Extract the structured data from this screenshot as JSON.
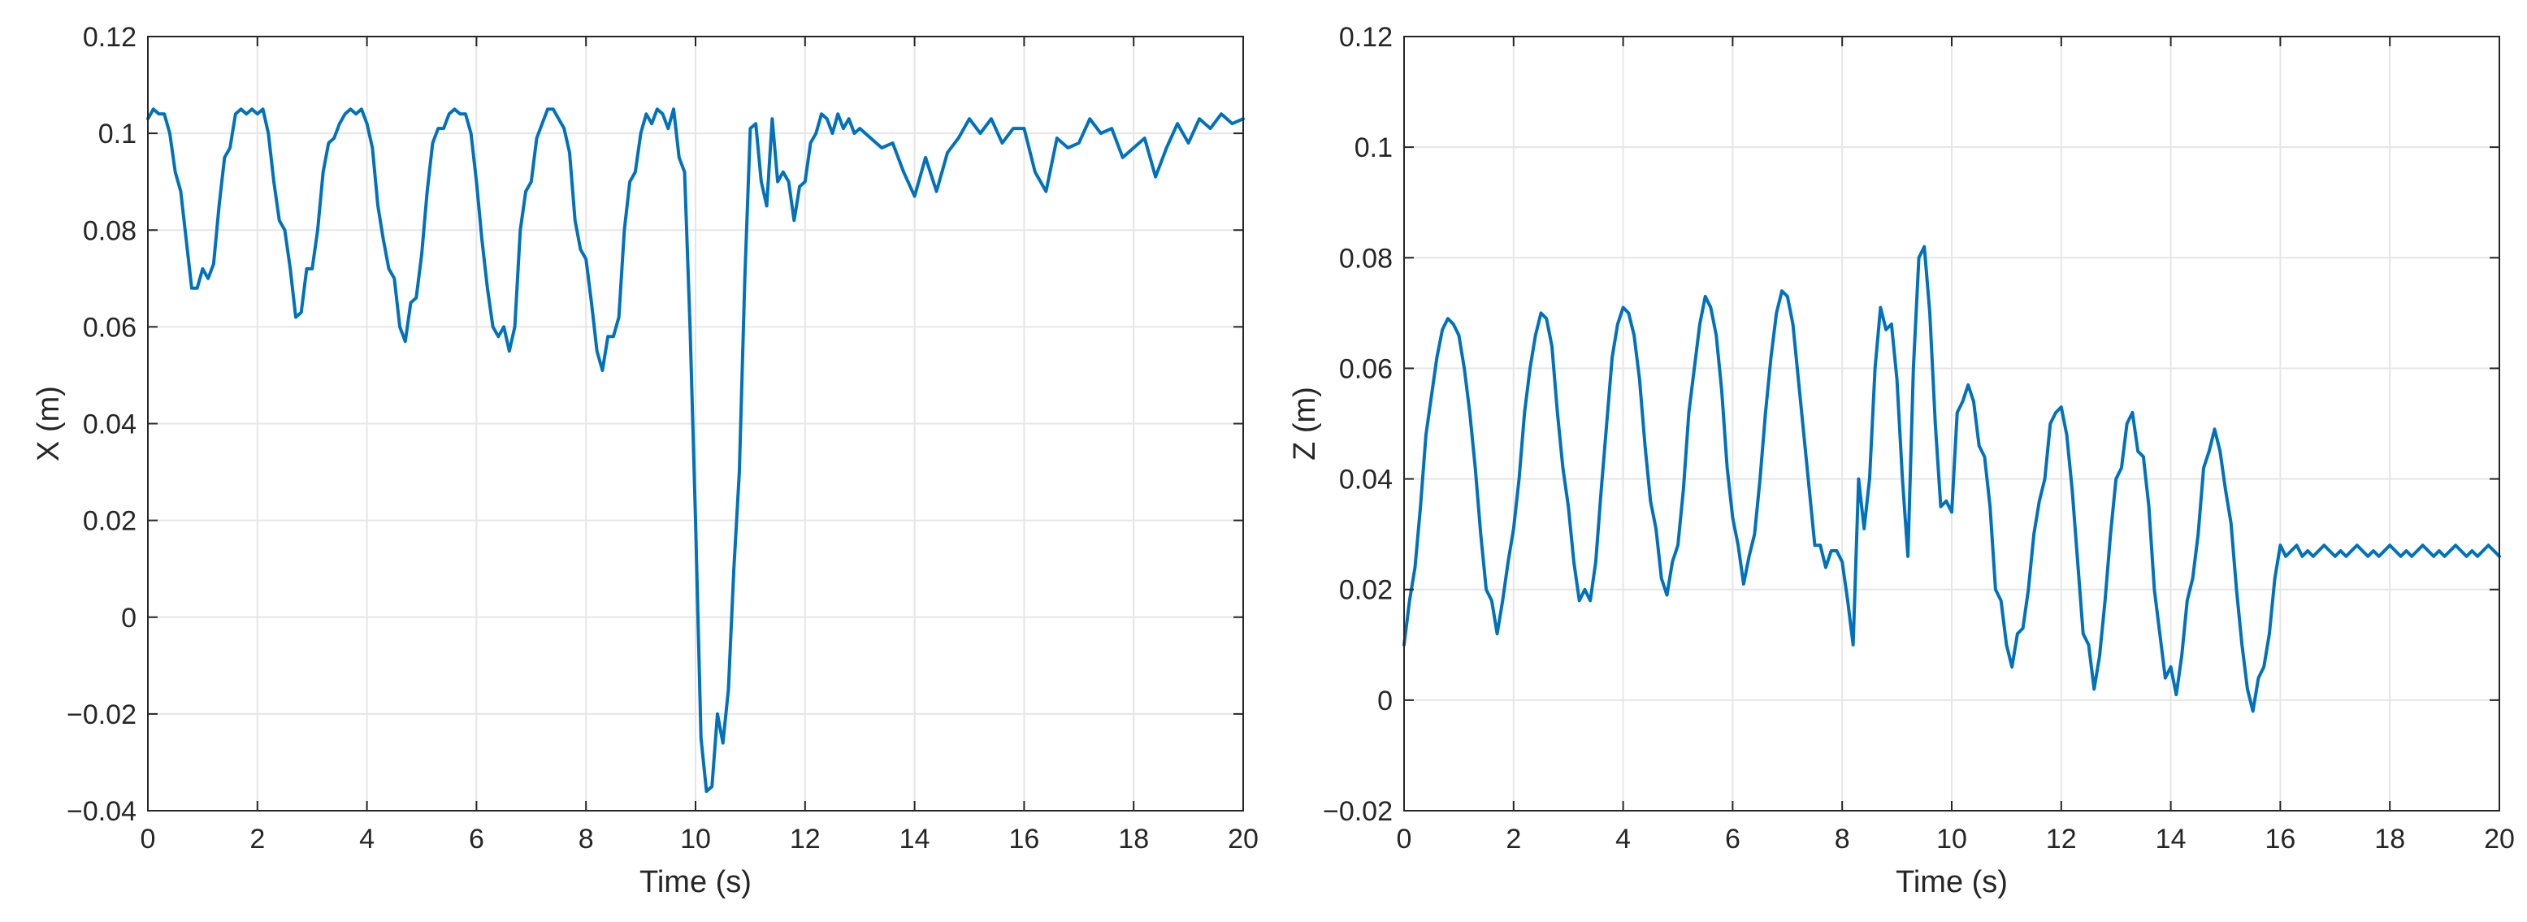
{
  "colors": {
    "series": "#0072BD",
    "axis": "#262626",
    "grid": "#e6e6e6"
  },
  "chart_data": [
    {
      "type": "line",
      "xlabel": "Time (s)",
      "ylabel": "X (m)",
      "xlim": [
        0,
        20
      ],
      "ylim": [
        -0.04,
        0.12
      ],
      "xticks": [
        0,
        2,
        4,
        6,
        8,
        10,
        12,
        14,
        16,
        18,
        20
      ],
      "yticks": [
        -0.04,
        -0.02,
        0,
        0.02,
        0.04,
        0.06,
        0.08,
        0.1,
        0.12
      ],
      "xtick_labels": [
        "0",
        "2",
        "4",
        "6",
        "8",
        "10",
        "12",
        "14",
        "16",
        "18",
        "20"
      ],
      "ytick_labels": [
        "-0.04",
        "-0.02",
        "0",
        "0.02",
        "0.04",
        "0.06",
        "0.08",
        "0.1",
        "0.12"
      ],
      "grid": true,
      "series": [
        {
          "x": [
            0,
            0.1,
            0.2,
            0.3,
            0.4,
            0.5,
            0.6,
            0.7,
            0.8,
            0.9,
            1.0,
            1.1,
            1.2,
            1.3,
            1.4,
            1.5,
            1.6,
            1.7,
            1.8,
            1.9,
            2.0,
            2.1,
            2.2,
            2.3,
            2.4,
            2.5,
            2.6,
            2.7,
            2.8,
            2.9,
            3.0,
            3.1,
            3.2,
            3.3,
            3.4,
            3.5,
            3.6,
            3.7,
            3.8,
            3.9,
            4.0,
            4.1,
            4.2,
            4.3,
            4.4,
            4.5,
            4.6,
            4.7,
            4.8,
            4.9,
            5.0,
            5.1,
            5.2,
            5.3,
            5.4,
            5.5,
            5.6,
            5.7,
            5.8,
            5.9,
            6.0,
            6.1,
            6.2,
            6.3,
            6.4,
            6.5,
            6.6,
            6.7,
            6.8,
            6.9,
            7.0,
            7.1,
            7.2,
            7.3,
            7.4,
            7.5,
            7.6,
            7.7,
            7.8,
            7.9,
            8.0,
            8.1,
            8.2,
            8.3,
            8.4,
            8.5,
            8.6,
            8.7,
            8.8,
            8.9,
            9.0,
            9.1,
            9.2,
            9.3,
            9.4,
            9.5,
            9.6,
            9.7,
            9.8,
            9.9,
            10.0,
            10.1,
            10.2,
            10.3,
            10.4,
            10.5,
            10.6,
            10.7,
            10.8,
            10.9,
            11.0,
            11.1,
            11.2,
            11.3,
            11.4,
            11.5,
            11.6,
            11.7,
            11.8,
            11.9,
            12.0,
            12.1,
            12.2,
            12.3,
            12.4,
            12.5,
            12.6,
            12.7,
            12.8,
            12.9,
            13.0,
            13.2,
            13.4,
            13.6,
            13.8,
            14.0,
            14.2,
            14.4,
            14.6,
            14.8,
            15.0,
            15.2,
            15.4,
            15.6,
            15.8,
            16.0,
            16.2,
            16.4,
            16.6,
            16.8,
            17.0,
            17.2,
            17.4,
            17.6,
            17.8,
            18.0,
            18.2,
            18.4,
            18.6,
            18.8,
            19.0,
            19.2,
            19.4,
            19.6,
            19.8,
            20.0
          ],
          "y": [
            0.103,
            0.105,
            0.104,
            0.104,
            0.1,
            0.092,
            0.088,
            0.078,
            0.068,
            0.068,
            0.072,
            0.07,
            0.073,
            0.085,
            0.095,
            0.097,
            0.104,
            0.105,
            0.104,
            0.105,
            0.104,
            0.105,
            0.1,
            0.09,
            0.082,
            0.08,
            0.072,
            0.062,
            0.063,
            0.072,
            0.072,
            0.08,
            0.092,
            0.098,
            0.099,
            0.102,
            0.104,
            0.105,
            0.104,
            0.105,
            0.102,
            0.097,
            0.085,
            0.078,
            0.072,
            0.07,
            0.06,
            0.057,
            0.065,
            0.066,
            0.075,
            0.088,
            0.098,
            0.101,
            0.101,
            0.104,
            0.105,
            0.104,
            0.104,
            0.1,
            0.09,
            0.078,
            0.068,
            0.06,
            0.058,
            0.06,
            0.055,
            0.06,
            0.08,
            0.088,
            0.09,
            0.099,
            0.102,
            0.105,
            0.105,
            0.103,
            0.101,
            0.096,
            0.082,
            0.076,
            0.074,
            0.065,
            0.055,
            0.051,
            0.058,
            0.058,
            0.062,
            0.08,
            0.09,
            0.092,
            0.1,
            0.104,
            0.102,
            0.105,
            0.104,
            0.101,
            0.105,
            0.095,
            0.092,
            0.06,
            0.02,
            -0.025,
            -0.036,
            -0.035,
            -0.02,
            -0.026,
            -0.015,
            0.01,
            0.03,
            0.07,
            0.101,
            0.102,
            0.09,
            0.085,
            0.103,
            0.09,
            0.092,
            0.09,
            0.082,
            0.089,
            0.09,
            0.098,
            0.1,
            0.104,
            0.103,
            0.1,
            0.104,
            0.101,
            0.103,
            0.1,
            0.101,
            0.099,
            0.097,
            0.098,
            0.092,
            0.087,
            0.095,
            0.088,
            0.096,
            0.099,
            0.103,
            0.1,
            0.103,
            0.098,
            0.101,
            0.101,
            0.092,
            0.088,
            0.099,
            0.097,
            0.098,
            0.103,
            0.1,
            0.101,
            0.095,
            0.097,
            0.099,
            0.091,
            0.097,
            0.102,
            0.098,
            0.103,
            0.101,
            0.104,
            0.102,
            0.103
          ]
        }
      ]
    },
    {
      "type": "line",
      "xlabel": "Time (s)",
      "ylabel": "Z (m)",
      "xlim": [
        0,
        20
      ],
      "ylim": [
        -0.02,
        0.12
      ],
      "xticks": [
        0,
        2,
        4,
        6,
        8,
        10,
        12,
        14,
        16,
        18,
        20
      ],
      "yticks": [
        -0.02,
        0,
        0.02,
        0.04,
        0.06,
        0.08,
        0.1,
        0.12
      ],
      "xtick_labels": [
        "0",
        "2",
        "4",
        "6",
        "8",
        "10",
        "12",
        "14",
        "16",
        "18",
        "20"
      ],
      "ytick_labels": [
        "-0.02",
        "0",
        "0.02",
        "0.04",
        "0.06",
        "0.08",
        "0.1",
        "0.12"
      ],
      "grid": true,
      "series": [
        {
          "x": [
            0,
            0.1,
            0.2,
            0.3,
            0.4,
            0.5,
            0.6,
            0.7,
            0.8,
            0.9,
            1.0,
            1.1,
            1.2,
            1.3,
            1.4,
            1.5,
            1.6,
            1.7,
            1.8,
            1.9,
            2.0,
            2.1,
            2.2,
            2.3,
            2.4,
            2.5,
            2.6,
            2.7,
            2.8,
            2.9,
            3.0,
            3.1,
            3.2,
            3.3,
            3.4,
            3.5,
            3.6,
            3.7,
            3.8,
            3.9,
            4.0,
            4.1,
            4.2,
            4.3,
            4.4,
            4.5,
            4.6,
            4.7,
            4.8,
            4.9,
            5.0,
            5.1,
            5.2,
            5.3,
            5.4,
            5.5,
            5.6,
            5.7,
            5.8,
            5.9,
            6.0,
            6.1,
            6.2,
            6.3,
            6.4,
            6.5,
            6.6,
            6.7,
            6.8,
            6.9,
            7.0,
            7.1,
            7.2,
            7.3,
            7.4,
            7.5,
            7.6,
            7.7,
            7.8,
            7.9,
            8.0,
            8.1,
            8.2,
            8.3,
            8.4,
            8.5,
            8.6,
            8.7,
            8.8,
            8.9,
            9.0,
            9.1,
            9.2,
            9.3,
            9.4,
            9.5,
            9.6,
            9.7,
            9.8,
            9.9,
            10.0,
            10.1,
            10.2,
            10.3,
            10.4,
            10.5,
            10.6,
            10.7,
            10.8,
            10.9,
            11.0,
            11.1,
            11.2,
            11.3,
            11.4,
            11.5,
            11.6,
            11.7,
            11.8,
            11.9,
            12.0,
            12.1,
            12.2,
            12.3,
            12.4,
            12.5,
            12.6,
            12.7,
            12.8,
            12.9,
            13.0,
            13.1,
            13.2,
            13.3,
            13.4,
            13.5,
            13.6,
            13.7,
            13.8,
            13.9,
            14.0,
            14.1,
            14.2,
            14.3,
            14.4,
            14.5,
            14.6,
            14.7,
            14.8,
            14.9,
            15.0,
            15.1,
            15.2,
            15.3,
            15.4,
            15.5,
            15.6,
            15.7,
            15.8,
            15.9,
            16.0,
            16.1,
            16.2,
            16.3,
            16.4,
            16.5,
            16.6,
            16.7,
            16.8,
            16.9,
            17.0,
            17.1,
            17.2,
            17.3,
            17.4,
            17.5,
            17.6,
            17.7,
            17.8,
            17.9,
            18.0,
            18.1,
            18.2,
            18.3,
            18.4,
            18.5,
            18.6,
            18.7,
            18.8,
            18.9,
            19.0,
            19.1,
            19.2,
            19.3,
            19.4,
            19.5,
            19.6,
            19.7,
            19.8,
            19.9,
            20.0
          ],
          "y": [
            0.01,
            0.018,
            0.024,
            0.035,
            0.048,
            0.055,
            0.062,
            0.067,
            0.069,
            0.068,
            0.066,
            0.06,
            0.052,
            0.042,
            0.03,
            0.02,
            0.018,
            0.012,
            0.018,
            0.025,
            0.031,
            0.04,
            0.052,
            0.06,
            0.066,
            0.07,
            0.069,
            0.064,
            0.052,
            0.042,
            0.035,
            0.025,
            0.018,
            0.02,
            0.018,
            0.025,
            0.038,
            0.05,
            0.062,
            0.068,
            0.071,
            0.07,
            0.066,
            0.058,
            0.046,
            0.036,
            0.031,
            0.022,
            0.019,
            0.025,
            0.028,
            0.038,
            0.052,
            0.06,
            0.068,
            0.073,
            0.071,
            0.066,
            0.056,
            0.042,
            0.033,
            0.028,
            0.021,
            0.026,
            0.03,
            0.04,
            0.052,
            0.062,
            0.07,
            0.074,
            0.073,
            0.068,
            0.058,
            0.048,
            0.038,
            0.028,
            0.028,
            0.024,
            0.027,
            0.027,
            0.025,
            0.018,
            0.01,
            0.04,
            0.031,
            0.04,
            0.06,
            0.071,
            0.067,
            0.068,
            0.058,
            0.04,
            0.026,
            0.06,
            0.08,
            0.082,
            0.07,
            0.05,
            0.035,
            0.036,
            0.034,
            0.052,
            0.054,
            0.057,
            0.054,
            0.046,
            0.044,
            0.035,
            0.02,
            0.018,
            0.01,
            0.006,
            0.012,
            0.013,
            0.02,
            0.03,
            0.036,
            0.04,
            0.05,
            0.052,
            0.053,
            0.048,
            0.038,
            0.025,
            0.012,
            0.01,
            0.002,
            0.008,
            0.018,
            0.03,
            0.04,
            0.042,
            0.05,
            0.052,
            0.045,
            0.044,
            0.035,
            0.02,
            0.012,
            0.004,
            0.006,
            0.001,
            0.008,
            0.018,
            0.022,
            0.03,
            0.042,
            0.045,
            0.049,
            0.045,
            0.038,
            0.032,
            0.02,
            0.01,
            0.002,
            -0.002,
            0.004,
            0.006,
            0.012,
            0.022,
            0.028,
            0.026,
            0.027,
            0.028,
            0.026,
            0.027,
            0.026,
            0.027,
            0.028,
            0.027,
            0.026,
            0.027,
            0.026,
            0.027,
            0.028,
            0.027,
            0.026,
            0.027,
            0.026,
            0.027,
            0.028,
            0.027,
            0.026,
            0.027,
            0.026,
            0.027,
            0.028,
            0.027,
            0.026,
            0.027,
            0.026,
            0.027,
            0.028,
            0.027,
            0.026,
            0.027,
            0.026,
            0.027,
            0.028,
            0.027,
            0.026
          ]
        }
      ]
    }
  ]
}
